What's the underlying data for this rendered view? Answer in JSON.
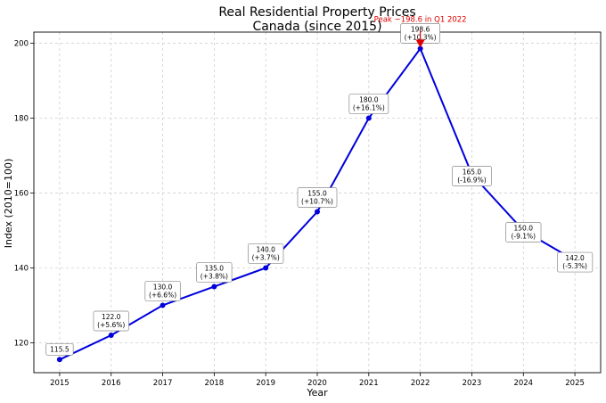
{
  "chart_data": {
    "type": "line",
    "title": "Real Residential Property Prices",
    "subtitle": "Canada (since 2015)",
    "xlabel": "Year",
    "ylabel": "Index (2010=100)",
    "ylim": [
      112,
      203
    ],
    "yticks": [
      120,
      140,
      160,
      180,
      200
    ],
    "grid": true,
    "series": [
      {
        "color": "#0000dd",
        "x": [
          2015,
          2016,
          2017,
          2018,
          2019,
          2020,
          2021,
          2022,
          2023,
          2024,
          2025
        ],
        "values": [
          115.5,
          122.0,
          130.0,
          135.0,
          140.0,
          155.0,
          180.0,
          198.6,
          165.0,
          150.0,
          142.0
        ],
        "labels": [
          [
            "115.5"
          ],
          [
            "122.0",
            "(+5.6%)"
          ],
          [
            "130.0",
            "(+6.6%)"
          ],
          [
            "135.0",
            "(+3.8%)"
          ],
          [
            "140.0",
            "(+3.7%)"
          ],
          [
            "155.0",
            "(+10.7%)"
          ],
          [
            "180.0",
            "(+16.1%)"
          ],
          [
            "198.6",
            "(+10.3%)"
          ],
          [
            "165.0",
            "(-16.9%)"
          ],
          [
            "150.0",
            "(-9.1%)"
          ],
          [
            "142.0",
            "(-5.3%)"
          ]
        ]
      }
    ],
    "annotations": [
      {
        "text": "Peak ~198.6 in Q1 2022",
        "x": 2022,
        "y": 198.6,
        "color": "#e00000"
      }
    ]
  }
}
